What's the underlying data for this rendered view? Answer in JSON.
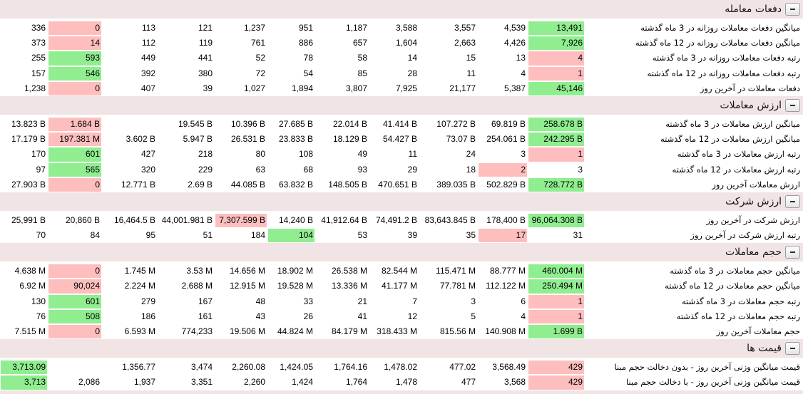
{
  "colors": {
    "section_header_bg": "#f1e4e4",
    "highlight_green": "#90ee90",
    "highlight_pink": "#ffbebe"
  },
  "icons": {
    "section_toggle": "minus-icon"
  },
  "sections": [
    {
      "title": "دفعات معامله",
      "rows": [
        {
          "label": "میانگین دفعات معاملات روزانه در 3 ماه گذشته",
          "cells": [
            "13,491",
            "4,539",
            "3,557",
            "3,588",
            "1,187",
            "951",
            "1,237",
            "121",
            "113",
            "0",
            "336"
          ],
          "green": 0,
          "pink": 9
        },
        {
          "label": "میانگین دفعات معاملات روزانه در 12 ماه گذشته",
          "cells": [
            "7,926",
            "4,426",
            "2,663",
            "1,604",
            "657",
            "886",
            "761",
            "119",
            "112",
            "14",
            "373"
          ],
          "green": 0,
          "pink": 9
        },
        {
          "label": "رتبه دفعات معاملات روزانه در 3 ماه گذشته",
          "cells": [
            "4",
            "13",
            "15",
            "14",
            "58",
            "78",
            "52",
            "441",
            "449",
            "593",
            "255"
          ],
          "green": 9,
          "pink": 0
        },
        {
          "label": "رتبه دفعات معاملات روزانه در 12 ماه گذشته",
          "cells": [
            "1",
            "4",
            "11",
            "28",
            "85",
            "54",
            "72",
            "380",
            "392",
            "546",
            "157"
          ],
          "green": 9,
          "pink": 0
        },
        {
          "label": "دفعات معاملات در آخرین روز",
          "cells": [
            "45,146",
            "5,387",
            "21,177",
            "7,925",
            "3,807",
            "1,894",
            "1,027",
            "39",
            "407",
            "0",
            "1,238"
          ],
          "green": 0,
          "pink": 9
        }
      ]
    },
    {
      "title": "ارزش معاملات",
      "rows": [
        {
          "label": "میانگین ارزش معاملات در 3 ماه گذشته",
          "cells": [
            "258.678 B",
            "69.819 B",
            "107.272 B",
            "41.414 B",
            "22.014 B",
            "27.685 B",
            "10.396 B",
            "19.545 B",
            "",
            "1.684 B",
            "13.823 B"
          ],
          "green": 0,
          "pink": 9
        },
        {
          "label": "میانگین ارزش معاملات در 12 ماه گذشته",
          "cells": [
            "242.295 B",
            "254.061 B",
            "73.07 B",
            "54.427 B",
            "18.129 B",
            "23.833 B",
            "26.531 B",
            "5.947 B",
            "3.602 B",
            "197.381 M",
            "17.179 B"
          ],
          "green": 0,
          "pink": 9
        },
        {
          "label": "رتبه ارزش معاملات در 3 ماه گذشته",
          "cells": [
            "1",
            "3",
            "24",
            "11",
            "49",
            "108",
            "80",
            "218",
            "427",
            "601",
            "170"
          ],
          "green": 9,
          "pink": 0
        },
        {
          "label": "رتبه ارزش معاملات در 12 ماه گذشته",
          "cells": [
            "3",
            "2",
            "18",
            "29",
            "93",
            "68",
            "63",
            "229",
            "320",
            "565",
            "97"
          ],
          "green": 9,
          "pink": 1
        },
        {
          "label": "ارزش معاملات آخرین روز",
          "cells": [
            "728.772 B",
            "502.829 B",
            "389.035 B",
            "470.651 B",
            "148.505 B",
            "63.832 B",
            "44.085 B",
            "2.69 B",
            "12.771 B",
            "0",
            "27.903 B"
          ],
          "green": 0,
          "pink": 9
        }
      ]
    },
    {
      "title": "ارزش شرکت",
      "rows": [
        {
          "label": "ارزش شرکت در آخرین روز",
          "cells": [
            "96,064.308 B",
            "178,400 B",
            "83,643.845 B",
            "74,491.2 B",
            "41,912.64 B",
            "14,240 B",
            "7,307.599 B",
            "44,001.981 B",
            "16,464.5 B",
            "20,860 B",
            "25,991 B"
          ],
          "green": 0,
          "pink": 6
        },
        {
          "label": "رتبه ارزش شرکت در آخرین روز",
          "cells": [
            "31",
            "17",
            "35",
            "39",
            "53",
            "104",
            "184",
            "51",
            "95",
            "84",
            "70"
          ],
          "green": 5,
          "pink": 1
        }
      ]
    },
    {
      "title": "حجم معاملات",
      "rows": [
        {
          "label": "میانگین حجم معاملات در 3 ماه گذشته",
          "cells": [
            "460.004 M",
            "88.777 M",
            "115.471 M",
            "82.544 M",
            "26.538 M",
            "18.902 M",
            "14.656 M",
            "3.53 M",
            "1.745 M",
            "0",
            "4.638 M"
          ],
          "green": 0,
          "pink": 9
        },
        {
          "label": "میانگین حجم معاملات در 12 ماه گذشته",
          "cells": [
            "250.494 M",
            "112.122 M",
            "77.781 M",
            "41.177 M",
            "13.336 M",
            "19.528 M",
            "12.915 M",
            "2.688 M",
            "2.224 M",
            "90,024",
            "6.92 M"
          ],
          "green": 0,
          "pink": 9
        },
        {
          "label": "رتبه حجم معاملات در 3 ماه گذشته",
          "cells": [
            "1",
            "6",
            "3",
            "7",
            "21",
            "33",
            "48",
            "167",
            "279",
            "601",
            "130"
          ],
          "green": 9,
          "pink": 0
        },
        {
          "label": "رتبه حجم معاملات در 12 ماه گذشته",
          "cells": [
            "1",
            "4",
            "5",
            "12",
            "41",
            "26",
            "43",
            "161",
            "186",
            "508",
            "76"
          ],
          "green": 9,
          "pink": 0
        },
        {
          "label": "حجم معاملات آخرین روز",
          "cells": [
            "1.699 B",
            "140.908 M",
            "815.56 M",
            "318.433 M",
            "84.179 M",
            "44.824 M",
            "19.506 M",
            "774,233",
            "6.593 M",
            "0",
            "7.515 M"
          ],
          "green": 0,
          "pink": 9
        }
      ]
    },
    {
      "title": "قیمت ها",
      "rows": [
        {
          "label": "قیمت میانگین وزنی آخرین روز - بدون دخالت حجم مبنا",
          "cells": [
            "429",
            "3,568.49",
            "477.02",
            "1,478.02",
            "1,764.16",
            "1,424.05",
            "2,260.08",
            "3,474",
            "1,356.77",
            "",
            "3,713.09"
          ],
          "green": 10,
          "pink": 0
        },
        {
          "label": "قیمت میانگین وزنی آخرین روز - با دخالت حجم مبنا",
          "cells": [
            "429",
            "3,568",
            "477",
            "1,478",
            "1,764",
            "1,424",
            "2,260",
            "3,351",
            "1,937",
            "2,086",
            "3,713"
          ],
          "green": 10,
          "pink": 0
        }
      ]
    }
  ]
}
